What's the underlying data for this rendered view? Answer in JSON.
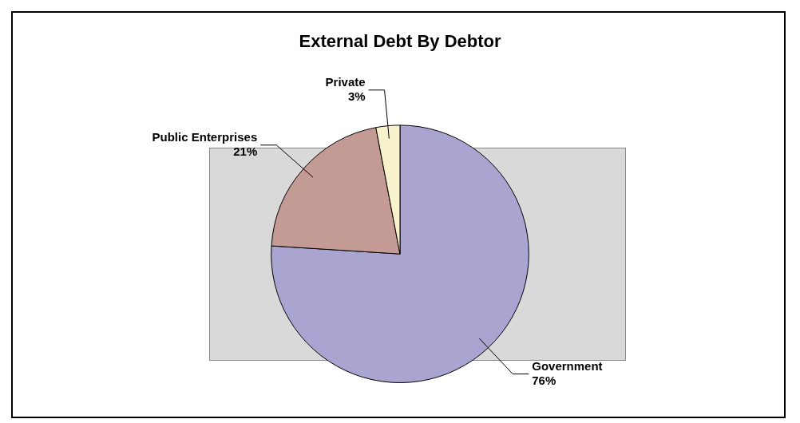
{
  "chart_data": {
    "type": "pie",
    "title": "External Debt By Debtor",
    "categories": [
      "Government",
      "Public Enterprises",
      "Private"
    ],
    "values": [
      76,
      21,
      3
    ],
    "colors": [
      "#aaa4d0",
      "#c49a94",
      "#f7f2cc"
    ],
    "value_labels": [
      "76%",
      "21%",
      "3%"
    ],
    "legend": false
  }
}
